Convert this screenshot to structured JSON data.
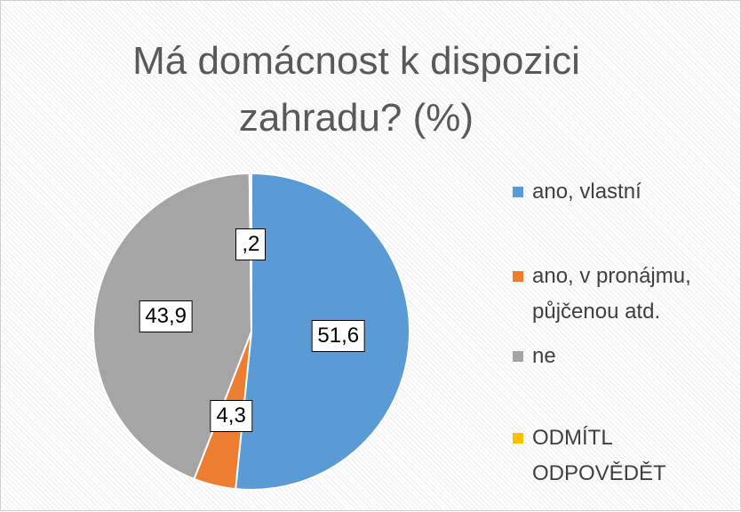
{
  "chart_data": {
    "type": "pie",
    "title": "Má domácnost k dispozici zahradu? (%)",
    "categories": [
      "ano, vlastní",
      "ano, v pronájmu, půjčenou atd.",
      "ne",
      "ODMÍTL ODPOVĚDĚT"
    ],
    "values": [
      51.6,
      4.3,
      43.9,
      0.2
    ],
    "value_labels": [
      "51,6",
      "4,3",
      "43,9",
      ",2"
    ],
    "colors": [
      "#5b9bd5",
      "#ed7d31",
      "#a5a5a5",
      "#ffc000"
    ],
    "legend": "right"
  }
}
